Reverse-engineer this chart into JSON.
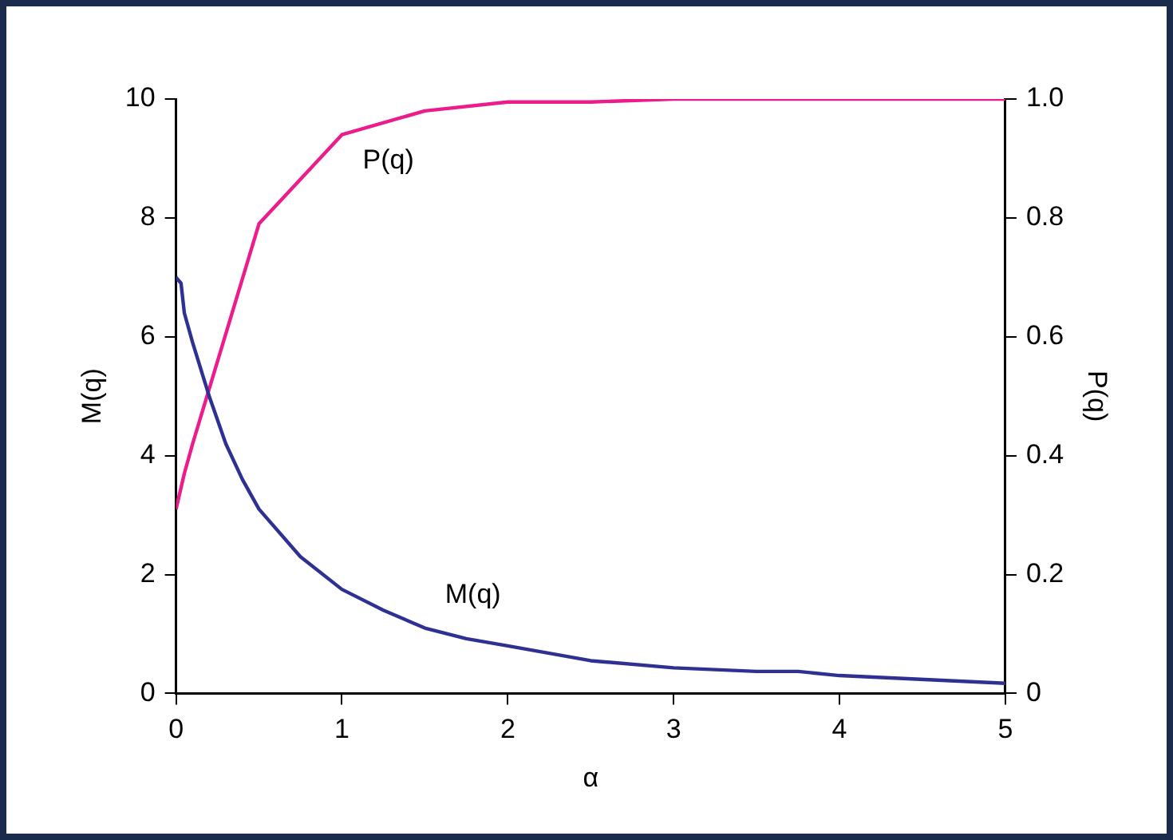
{
  "chart_data": {
    "type": "line",
    "xlabel": "α",
    "ylabel": "M(q)",
    "y2label": "P(q)",
    "xlim": [
      0,
      5
    ],
    "xticks": [
      0,
      1,
      2,
      3,
      4,
      5
    ],
    "ylim": [
      0,
      10
    ],
    "yticks": [
      0,
      2,
      4,
      6,
      8,
      10
    ],
    "y2lim": [
      0,
      1
    ],
    "y2ticks": [
      {
        "value": 0,
        "label": "0"
      },
      {
        "value": 0.2,
        "label": "0.2"
      },
      {
        "value": 0.4,
        "label": "0.4"
      },
      {
        "value": 0.6,
        "label": "0.6"
      },
      {
        "value": 0.8,
        "label": "0.8"
      },
      {
        "value": 1,
        "label": "1.0"
      }
    ],
    "grid": false,
    "legend": false,
    "marker": "none",
    "line_style": "solid",
    "series": [
      {
        "name": "M(q)",
        "color": "#2e3192",
        "x": [
          0,
          0.03,
          0.05,
          0.1,
          0.2,
          0.3,
          0.4,
          0.5,
          0.75,
          1,
          1.25,
          1.5,
          1.75,
          2,
          2.5,
          3,
          3.5,
          3.75,
          4,
          5
        ],
        "values": [
          7.0,
          6.9,
          6.4,
          5.9,
          5.0,
          4.2,
          3.6,
          3.1,
          2.3,
          1.75,
          1.4,
          1.1,
          0.92,
          0.8,
          0.55,
          0.43,
          0.37,
          0.37,
          0.3,
          0.17
        ]
      },
      {
        "name": "P(q)",
        "color": "#ec1c8c",
        "axis": "y2",
        "x": [
          0,
          0.05,
          0.1,
          0.5,
          1,
          1.5,
          2,
          2.5,
          3,
          3.5,
          4,
          5
        ],
        "values": [
          0.31,
          0.37,
          0.42,
          0.79,
          0.94,
          0.98,
          0.995,
          0.995,
          1.0,
          1.0,
          1.0,
          1.0
        ]
      }
    ]
  }
}
